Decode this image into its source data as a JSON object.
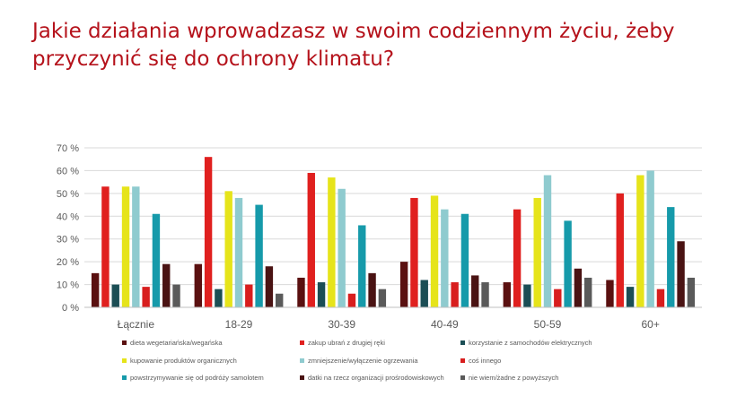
{
  "chart_data": {
    "type": "bar",
    "title": "Jakie działania wprowadzasz w swoim codziennym życiu, żeby przyczynić się do ochrony klimatu?",
    "categories": [
      "Łącznie",
      "18-29",
      "30-39",
      "40-49",
      "50-59",
      "60+"
    ],
    "ylim": [
      0,
      70
    ],
    "yticks": [
      "0 %",
      "10 %",
      "20 %",
      "30 %",
      "40 %",
      "50 %",
      "60 %",
      "70 %"
    ],
    "grid": true,
    "legend_position": "bottom",
    "series": [
      {
        "name": "dieta wegetariańska/wegańska",
        "color": "#5a1010",
        "values": [
          15,
          19,
          13,
          20,
          11,
          12
        ]
      },
      {
        "name": "zakup ubrań z drugiej ręki",
        "color": "#e0201f",
        "values": [
          53,
          66,
          59,
          48,
          43,
          50
        ]
      },
      {
        "name": "korzystanie z samochodów elektrycznych",
        "color": "#1b4e55",
        "values": [
          10,
          8,
          11,
          12,
          10,
          9
        ]
      },
      {
        "name": "kupowanie produktów organicznych",
        "color": "#e6e41a",
        "values": [
          53,
          51,
          57,
          49,
          48,
          58
        ]
      },
      {
        "name": "zmniejszenie/wyłączenie ogrzewania",
        "color": "#8fcbcf",
        "values": [
          53,
          48,
          52,
          43,
          58,
          60
        ]
      },
      {
        "name": "coś innego",
        "color": "#d81e1e",
        "values": [
          9,
          10,
          6,
          11,
          8,
          8
        ]
      },
      {
        "name": "powstrzymywanie się od podróży samolotem",
        "color": "#169aaa",
        "values": [
          41,
          45,
          36,
          41,
          38,
          44
        ]
      },
      {
        "name": "datki na rzecz organizacji prośrodowiskowych",
        "color": "#4a1313",
        "values": [
          19,
          18,
          15,
          14,
          17,
          29
        ]
      },
      {
        "name": "nie wiem/żadne z powyższych",
        "color": "#5a5a5a",
        "values": [
          10,
          6,
          8,
          11,
          13,
          13
        ]
      }
    ]
  }
}
